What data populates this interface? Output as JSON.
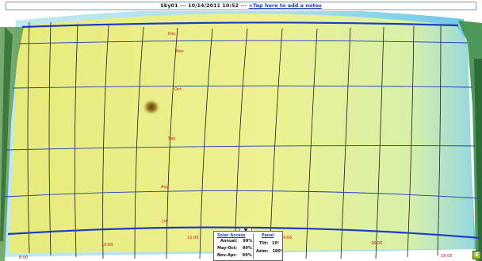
{
  "title_bar": {
    "site": "Sky01",
    "separator": "---",
    "datetime": "10/14/2011 10:52",
    "separator2": "---",
    "notes_link": "<Tap here to add a notes"
  },
  "months": [
    "Dec",
    "Nov",
    "Oct",
    "Sep",
    "Aug",
    "Jul"
  ],
  "hours": [
    "8:00",
    "10:00",
    "12:00",
    "14:00",
    "16:00",
    "18:00"
  ],
  "panel_toggle": "▼",
  "info_panel": {
    "solar_access": {
      "heading": "Solar Access",
      "annual_label": "Annual:",
      "annual_value": "99%",
      "may_oct_label": "May-Oct:",
      "may_oct_value": "99%",
      "nov_apr_label": "Nov-Apr:",
      "nov_apr_value": "99%"
    },
    "panel": {
      "heading": "Panel",
      "tilt_label": "Tilt:",
      "tilt_value": "10°",
      "azim_label": "Azim:",
      "azim_value": "180°"
    }
  },
  "corner_button": "E",
  "colors": {
    "sky_yellow": "#eef08a",
    "sky_blue": "#6fc6e8",
    "tree_green": "#3a8a4a",
    "sun_path_blue": "#1f3bc2",
    "label_red": "#c8101e"
  }
}
